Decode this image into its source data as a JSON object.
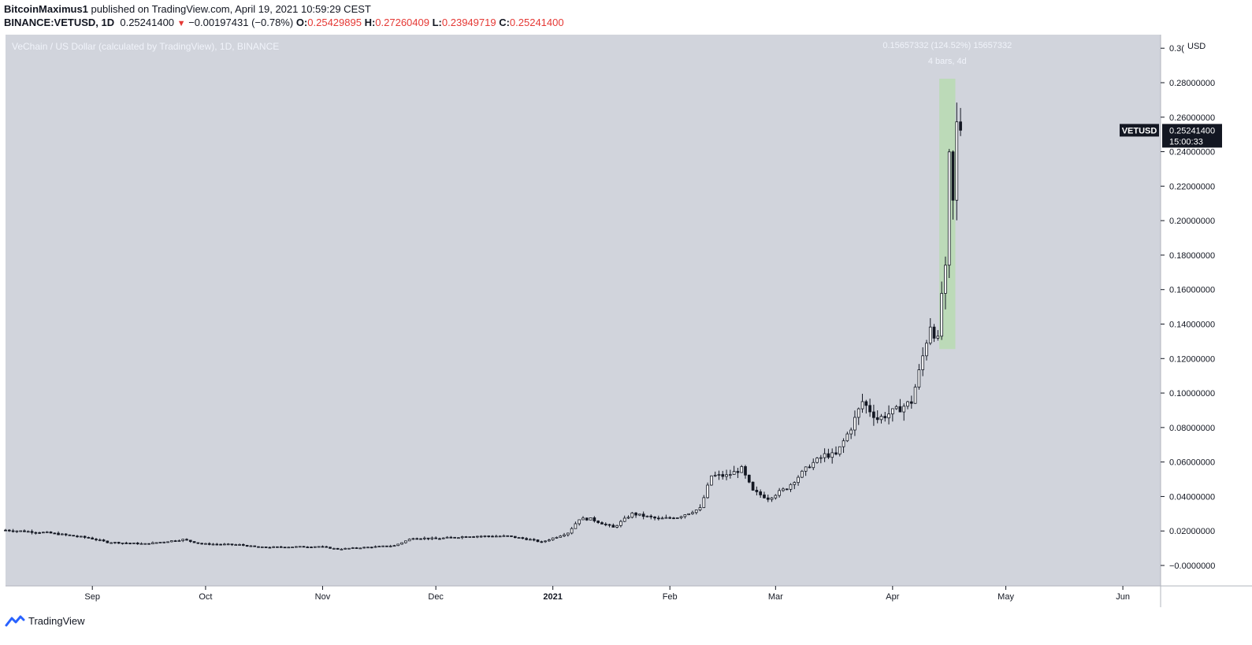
{
  "header": {
    "publisher": "BitcoinMaximus1",
    "published_text": " published on TradingView.com, April 19, 2021 10:59:29 CEST",
    "symbol": "BINANCE:VETUSD, 1D",
    "last": "0.25241400",
    "change": "−0.00197431 (−0.78%)",
    "o_label": "O:",
    "o_val": "0.25429895",
    "h_label": "H:",
    "h_val": "0.27260409",
    "l_label": "L:",
    "l_val": "0.23949719",
    "c_label": "C:",
    "c_val": "0.25241400"
  },
  "footer": {
    "brand": "TradingView"
  },
  "colors": {
    "plot_bg": "#d1d4dc",
    "measure": "#b9dbb1",
    "candle": "#131722",
    "badge": "#131722"
  },
  "chart_data": {
    "type": "candlestick",
    "title": "VeChain / US Dollar (calculated by TradingView), 1D, BINANCE",
    "currency": "USD",
    "ylim": [
      -0.004,
      0.3
    ],
    "y_ticks": [
      "0.3(",
      "0.28000000",
      "0.26000000",
      "0.24000000",
      "0.22000000",
      "0.20000000",
      "0.18000000",
      "0.16000000",
      "0.14000000",
      "0.12000000",
      "0.10000000",
      "0.08000000",
      "0.06000000",
      "0.04000000",
      "0.02000000",
      "−0.0000000"
    ],
    "y_tick_values": [
      0.3,
      0.28,
      0.26,
      0.24,
      0.22,
      0.2,
      0.18,
      0.16,
      0.14,
      0.12,
      0.1,
      0.08,
      0.06,
      0.04,
      0.02,
      0.0
    ],
    "x_labels": [
      {
        "label": "Sep",
        "date": "2020-09-01"
      },
      {
        "label": "Oct",
        "date": "2020-10-01"
      },
      {
        "label": "Nov",
        "date": "2020-11-01"
      },
      {
        "label": "Dec",
        "date": "2020-12-01"
      },
      {
        "label": "2021",
        "date": "2021-01-01"
      },
      {
        "label": "Feb",
        "date": "2021-02-01"
      },
      {
        "label": "Mar",
        "date": "2021-03-01"
      },
      {
        "label": "Apr",
        "date": "2021-04-01"
      },
      {
        "label": "May",
        "date": "2021-05-01"
      },
      {
        "label": "Jun",
        "date": "2021-06-01"
      }
    ],
    "x_range": [
      "2020-08-09",
      "2021-06-11"
    ],
    "price_points": [
      [
        "2020-08-09",
        0.0205
      ],
      [
        "2020-08-20",
        0.019
      ],
      [
        "2020-08-31",
        0.016
      ],
      [
        "2020-09-05",
        0.0135
      ],
      [
        "2020-09-15",
        0.0125
      ],
      [
        "2020-09-25",
        0.015
      ],
      [
        "2020-09-30",
        0.0125
      ],
      [
        "2020-10-10",
        0.012
      ],
      [
        "2020-10-15",
        0.0105
      ],
      [
        "2020-10-31",
        0.011
      ],
      [
        "2020-11-05",
        0.0095
      ],
      [
        "2020-11-20",
        0.0115
      ],
      [
        "2020-11-25",
        0.016
      ],
      [
        "2020-12-01",
        0.0155
      ],
      [
        "2020-12-10",
        0.017
      ],
      [
        "2020-12-20",
        0.017
      ],
      [
        "2020-12-26",
        0.015
      ],
      [
        "2020-12-29",
        0.0135
      ],
      [
        "2021-01-05",
        0.019
      ],
      [
        "2021-01-08",
        0.027
      ],
      [
        "2021-01-11",
        0.027
      ],
      [
        "2021-01-17",
        0.022
      ],
      [
        "2021-01-22",
        0.03
      ],
      [
        "2021-01-29",
        0.027
      ],
      [
        "2021-02-03",
        0.028
      ],
      [
        "2021-02-09",
        0.033
      ],
      [
        "2021-02-12",
        0.052
      ],
      [
        "2021-02-16",
        0.052
      ],
      [
        "2021-02-20",
        0.056
      ],
      [
        "2021-02-23",
        0.043
      ],
      [
        "2021-02-27",
        0.039
      ],
      [
        "2021-03-04",
        0.045
      ],
      [
        "2021-03-10",
        0.058
      ],
      [
        "2021-03-14",
        0.064
      ],
      [
        "2021-03-17",
        0.064
      ],
      [
        "2021-03-21",
        0.08
      ],
      [
        "2021-03-24",
        0.095
      ],
      [
        "2021-03-28",
        0.085
      ],
      [
        "2021-04-02",
        0.09
      ],
      [
        "2021-04-06",
        0.095
      ],
      [
        "2021-04-08",
        0.112
      ],
      [
        "2021-04-11",
        0.14
      ],
      [
        "2021-04-13",
        0.13
      ],
      [
        "2021-04-14",
        0.158
      ],
      [
        "2021-04-15",
        0.17
      ],
      [
        "2021-04-16",
        0.235
      ],
      [
        "2021-04-17",
        0.21
      ],
      [
        "2021-04-18",
        0.255
      ],
      [
        "2021-04-19",
        0.2524
      ]
    ],
    "last_price_label": {
      "symbol": "VETUSD",
      "price": "0.25241400",
      "countdown": "15:00:33",
      "value": 0.252414
    },
    "measurement": {
      "text_top": "0.15657332 (124.52%) 15657332",
      "text_bottom": "4 bars, 4d",
      "start_date": "2021-04-14",
      "end_date": "2021-04-17",
      "low": 0.1255,
      "high": 0.2823
    },
    "grid": false,
    "legend": "none"
  }
}
